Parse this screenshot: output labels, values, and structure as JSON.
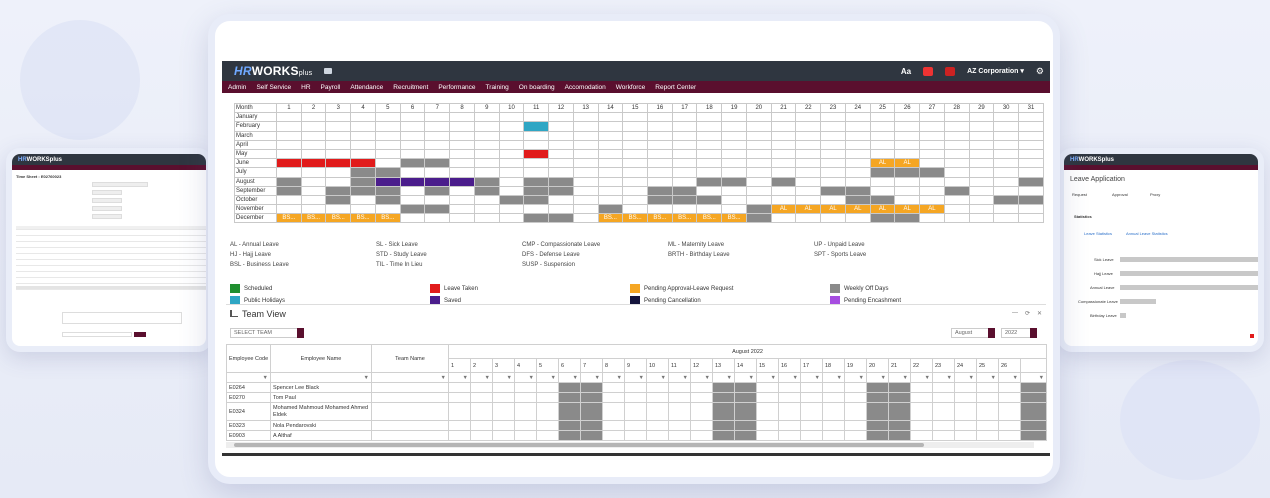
{
  "app": {
    "logo_hr": "HR",
    "logo_works": "WORKS",
    "logo_plus": "plus",
    "font_toggle": "Aa",
    "company": "AZ Corporation ▾"
  },
  "nav": [
    "Admin",
    "Self Service",
    "HR",
    "Payroll",
    "Attendance",
    "Recruitment",
    "Performance",
    "Training",
    "On boarding",
    "Accomodation",
    "Workforce",
    "Report Center"
  ],
  "calendar": {
    "month_header": "Month",
    "days": [
      "1",
      "2",
      "3",
      "4",
      "5",
      "6",
      "7",
      "8",
      "9",
      "10",
      "11",
      "12",
      "13",
      "14",
      "15",
      "16",
      "17",
      "18",
      "19",
      "20",
      "21",
      "22",
      "23",
      "24",
      "25",
      "26",
      "27",
      "28",
      "29",
      "30",
      "31"
    ],
    "months": [
      "January",
      "February",
      "March",
      "April",
      "May",
      "June",
      "July",
      "August",
      "September",
      "October",
      "November",
      "December"
    ],
    "label_AL": "AL",
    "label_BS": "BS..."
  },
  "leave_codes": [
    "AL - Annual Leave",
    "SL - Sick Leave",
    "CMP - Compassionate Leave",
    "ML - Maternity Leave",
    "UP - Unpaid Leave",
    "HJ - Hajj Leave",
    "STD - Study Leave",
    "DFS - Defense Leave",
    "BRTH - Birthday Leave",
    "SPT - Sports Leave",
    "BSL - Business Leave",
    "TIL - Time In Lieu",
    "SUSP - Suspension"
  ],
  "legend": [
    {
      "label": "Scheduled",
      "color": "#1f8f2f"
    },
    {
      "label": "Leave Taken",
      "color": "#e11b1b"
    },
    {
      "label": "Pending Approval-Leave Request",
      "color": "#f5a623"
    },
    {
      "label": "Weekly Off Days",
      "color": "#8a8a8a"
    },
    {
      "label": "Public Holidays",
      "color": "#2fa6c4"
    },
    {
      "label": "Saved",
      "color": "#4b1d8c"
    },
    {
      "label": "Pending Cancellation",
      "color": "#14143c"
    },
    {
      "label": "Pending Encashment",
      "color": "#a64de0"
    }
  ],
  "team": {
    "title": "Team View",
    "select_team": "SELECT TEAM",
    "month": "August",
    "year": "2022",
    "period": "August 2022",
    "col_code": "Employee Code",
    "col_name": "Employee Name",
    "col_team": "Team Name",
    "filter_icon": "▼",
    "days": [
      "1",
      "2",
      "3",
      "4",
      "5",
      "6",
      "7",
      "8",
      "9",
      "10",
      "11",
      "12",
      "13",
      "14",
      "15",
      "16",
      "17",
      "18",
      "19",
      "20",
      "21",
      "22",
      "23",
      "24",
      "25",
      "26"
    ],
    "rows": [
      {
        "code": "E0264",
        "name": "Spencer Lee Black"
      },
      {
        "code": "E0270",
        "name": "Tom Paul"
      },
      {
        "code": "E0324",
        "name": "Mohamed Mahmoud Mohamed Ahmed Eldek"
      },
      {
        "code": "E0323",
        "name": "Nola Pendarovski"
      },
      {
        "code": "E0903",
        "name": "A Althaf"
      }
    ]
  },
  "left_card": {
    "title": "Time Sheet : E02760023"
  },
  "right_card": {
    "title": "Leave Application",
    "tabs": [
      "Request",
      "Approval",
      "Proxy"
    ],
    "section": "Statistics",
    "subtabs": [
      "Leave Statistics",
      "Annual Leave Statistics"
    ],
    "bars": [
      "Sick Leave",
      "Hajj Leave",
      "Annual Leave",
      "Compassionate Leave",
      "Birthday Leave"
    ]
  }
}
